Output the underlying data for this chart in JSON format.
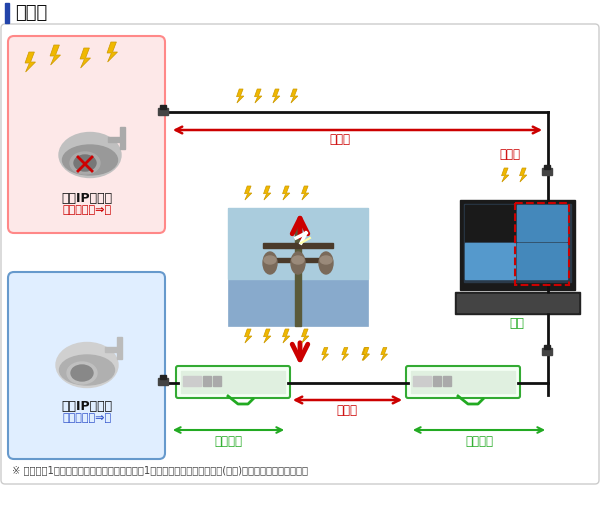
{
  "title": "構成例",
  "title_bar_color": "#2244aa",
  "bg_color": "#ffffff",
  "outer_border_color": "#cccccc",
  "red_box_color": "#fde8e8",
  "red_box_border": "#ff8888",
  "blue_box_color": "#e0eeff",
  "blue_box_border": "#6699cc",
  "green_box_border": "#33aa33",
  "red_color": "#cc0000",
  "black_color": "#111111",
  "green_color": "#22aa22",
  "lightning_color": "#f0b800",
  "lightning_outline": "#cc9900",
  "text_red": "#cc0000",
  "text_green": "#22aa22",
  "text_blue": "#3355cc",
  "text_black": "#111111",
  "text_gray": "#444444",
  "note_text": "※ 両端に各1台の設置を推奨しておりますが、1台設置の場合でも該当区間(片側)の保護効果はあります。",
  "label_camera1": "屋外IPカメラ",
  "label_damage": "損傷可能性⇒高",
  "label_camera2": "屋外IPカメラ",
  "label_protect": "保護可能性⇒高",
  "label_hiho1": "非保護",
  "label_hiho2": "非保護",
  "label_hiho3": "非保護",
  "label_hogo": "保護",
  "label_hogo_span1": "保護区間",
  "label_hogo_span2": "保護区間"
}
